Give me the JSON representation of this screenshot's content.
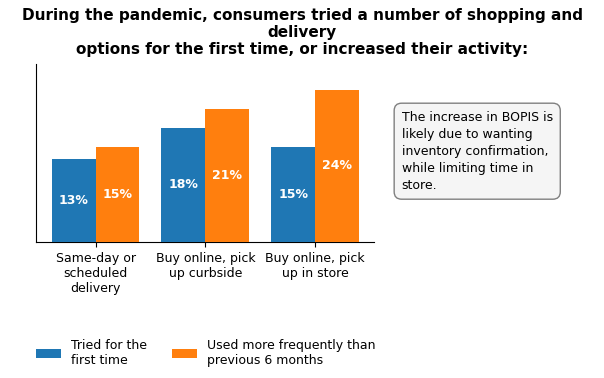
{
  "chart_data": {
    "type": "bar",
    "title": "During the pandemic, consumers tried a number of shopping and delivery\noptions for the first time, or increased their activity:",
    "categories": [
      "Same-day or\nscheduled\ndelivery",
      "Buy online, pick\nup curbside",
      "Buy online, pick\nup in store"
    ],
    "series": [
      {
        "name": "Tried for the\nfirst time",
        "values": [
          13,
          18,
          15
        ],
        "value_labels": [
          "13%",
          "18%",
          "15%"
        ]
      },
      {
        "name": "Used more frequently than\nprevious 6 months",
        "values": [
          15,
          21,
          24
        ],
        "value_labels": [
          "15%",
          "21%",
          "24%"
        ]
      }
    ],
    "ylim": [
      0,
      28
    ],
    "tick_labels": "x",
    "data_labels": true,
    "legend": "lower center",
    "annotation": "The increase in BOPIS is\nlikely due to wanting\ninventory confirmation,\nwhile limiting time in\nstore."
  }
}
